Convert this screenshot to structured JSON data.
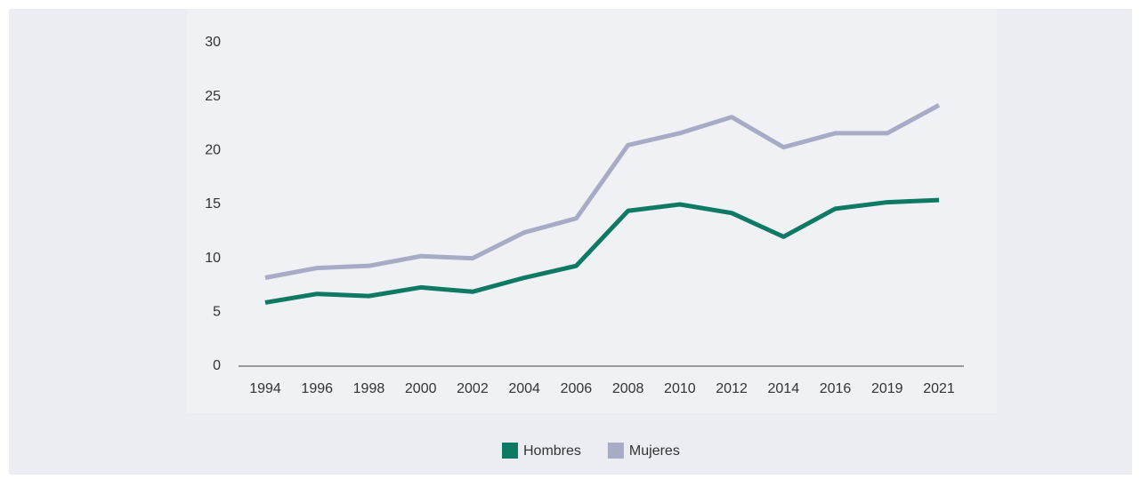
{
  "chart_data": {
    "type": "line",
    "categories": [
      "1994",
      "1996",
      "1998",
      "2000",
      "2002",
      "2004",
      "2006",
      "2008",
      "2010",
      "2012",
      "2014",
      "2016",
      "2019",
      "2021"
    ],
    "series": [
      {
        "name": "Hombres",
        "color": "#0e7a63",
        "values": [
          5.9,
          6.7,
          6.5,
          7.3,
          6.9,
          8.2,
          9.3,
          14.4,
          15.0,
          14.2,
          12.0,
          14.6,
          15.2,
          15.4
        ]
      },
      {
        "name": "Mujeres",
        "color": "#a7abc5",
        "values": [
          8.2,
          9.1,
          9.3,
          10.2,
          10.0,
          12.4,
          13.7,
          20.5,
          21.6,
          23.1,
          20.3,
          21.6,
          21.6,
          24.2
        ]
      }
    ],
    "ylim": [
      0,
      30
    ],
    "yticks": [
      0,
      5,
      10,
      15,
      20,
      25,
      30
    ],
    "legend": "bottom"
  }
}
